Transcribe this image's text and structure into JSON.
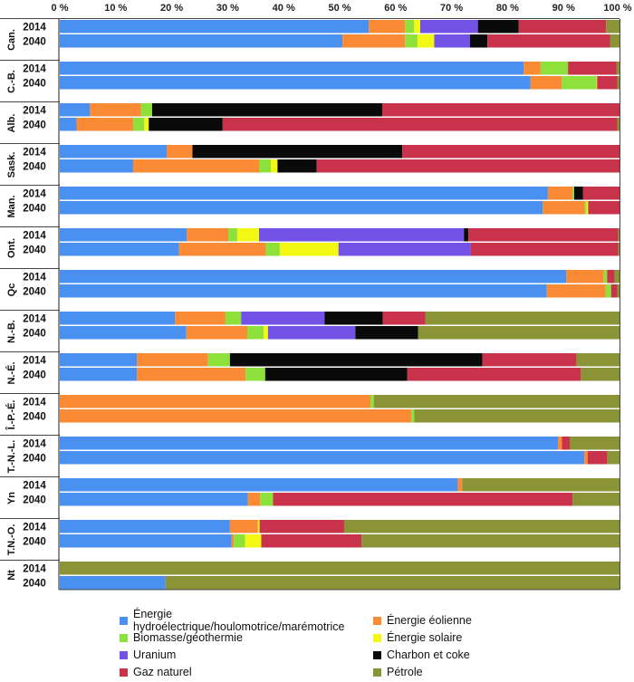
{
  "chart_data": {
    "type": "bar",
    "orientation": "horizontal",
    "stacked": true,
    "xlim": [
      0,
      100
    ],
    "x_ticks": [
      "0 %",
      "10 %",
      "20 %",
      "30 %",
      "40 %",
      "50 %",
      "60 %",
      "70 %",
      "80 %",
      "90 %",
      "100 %"
    ],
    "legend_position": "bottom",
    "series": [
      {
        "name": "Énergie hydroélectrique/houlomotrice/marémotrice",
        "color": "#4a90f0"
      },
      {
        "name": "Énergie éolienne",
        "color": "#fb8a35"
      },
      {
        "name": "Biomasse/géothermie",
        "color": "#8ee03a"
      },
      {
        "name": "Énergie solaire",
        "color": "#f3f714"
      },
      {
        "name": "Uranium",
        "color": "#7352e8"
      },
      {
        "name": "Charbon et coke",
        "color": "#0a0a0a"
      },
      {
        "name": "Gaz naturel",
        "color": "#c8324b"
      },
      {
        "name": "Pétrole",
        "color": "#8a9437"
      }
    ],
    "groups": [
      {
        "label": "Can.",
        "bars": [
          {
            "year": "2014",
            "values": [
              55.2,
              6.5,
              1.6,
              1.1,
              10.3,
              7.3,
              15.6,
              2.4
            ]
          },
          {
            "year": "2040",
            "values": [
              50.5,
              11.2,
              2.2,
              3.0,
              6.4,
              3.1,
              21.9,
              1.7
            ]
          }
        ]
      },
      {
        "label": "C.-B.",
        "bars": [
          {
            "year": "2014",
            "values": [
              82.9,
              3.0,
              4.9,
              0,
              0,
              0,
              8.7,
              0.5
            ]
          },
          {
            "year": "2040",
            "values": [
              84.1,
              5.6,
              6.2,
              0.1,
              0,
              0,
              3.6,
              0.4
            ]
          }
        ]
      },
      {
        "label": "Alb.",
        "bars": [
          {
            "year": "2014",
            "values": [
              5.4,
              9.1,
              2.0,
              0,
              0,
              41.1,
              42.4,
              0
            ]
          },
          {
            "year": "2040",
            "values": [
              3.0,
              10.1,
              2.0,
              0.8,
              0,
              13.2,
              70.5,
              0.4
            ]
          }
        ]
      },
      {
        "label": "Sask.",
        "bars": [
          {
            "year": "2014",
            "values": [
              19.1,
              4.6,
              0,
              0,
              0,
              37.5,
              38.8,
              0
            ]
          },
          {
            "year": "2040",
            "values": [
              13.1,
              22.5,
              2.1,
              1.2,
              0,
              7.0,
              54.1,
              0
            ]
          }
        ]
      },
      {
        "label": "Man.",
        "bars": [
          {
            "year": "2014",
            "values": [
              87.2,
              4.4,
              0.3,
              0,
              0,
              1.6,
              6.5,
              0
            ]
          },
          {
            "year": "2040",
            "values": [
              86.3,
              7.5,
              0.3,
              0.3,
              0,
              0,
              5.6,
              0
            ]
          }
        ]
      },
      {
        "label": "Ont.",
        "bars": [
          {
            "year": "2014",
            "values": [
              22.7,
              7.4,
              1.6,
              3.9,
              36.6,
              0.8,
              26.8,
              0.2
            ]
          },
          {
            "year": "2040",
            "values": [
              21.3,
              15.5,
              2.5,
              10.5,
              23.6,
              0,
              26.4,
              0.2
            ]
          }
        ]
      },
      {
        "label": "Qc",
        "bars": [
          {
            "year": "2014",
            "values": [
              90.5,
              6.7,
              0.6,
              0,
              0,
              0,
              1.3,
              0.9
            ]
          },
          {
            "year": "2040",
            "values": [
              87.0,
              10.5,
              1.0,
              0,
              0,
              0,
              1.1,
              0.4
            ]
          }
        ]
      },
      {
        "label": "N.-B.",
        "bars": [
          {
            "year": "2014",
            "values": [
              20.6,
              9.0,
              2.8,
              0,
              14.9,
              10.4,
              7.6,
              34.7
            ]
          },
          {
            "year": "2040",
            "values": [
              22.6,
              10.9,
              2.9,
              0.8,
              15.6,
              11.2,
              0,
              36.0
            ]
          }
        ]
      },
      {
        "label": "N.-É.",
        "bars": [
          {
            "year": "2014",
            "values": [
              13.8,
              12.7,
              3.9,
              0,
              0,
              45.1,
              16.8,
              7.7
            ]
          },
          {
            "year": "2040",
            "values": [
              13.8,
              19.4,
              3.5,
              0,
              0,
              25.4,
              31.0,
              6.9
            ]
          }
        ]
      },
      {
        "label": "Î.-P.-É.",
        "bars": [
          {
            "year": "2014",
            "values": [
              0,
              55.5,
              0.6,
              0,
              0,
              0,
              0,
              43.9
            ]
          },
          {
            "year": "2040",
            "values": [
              0,
              62.8,
              0.5,
              0,
              0,
              0,
              0,
              36.7
            ]
          }
        ]
      },
      {
        "label": "T.-N.-L.",
        "bars": [
          {
            "year": "2014",
            "values": [
              89.0,
              0.7,
              0,
              0,
              0,
              0,
              1.4,
              8.9
            ]
          },
          {
            "year": "2040",
            "values": [
              93.7,
              0.6,
              0,
              0,
              0,
              0,
              3.5,
              2.2
            ]
          }
        ]
      },
      {
        "label": "Yn",
        "bars": [
          {
            "year": "2014",
            "values": [
              71.1,
              0.8,
              0,
              0,
              0,
              0,
              0,
              28.1
            ]
          },
          {
            "year": "2040",
            "values": [
              33.6,
              2.2,
              2.3,
              0,
              0,
              0,
              53.5,
              8.4
            ]
          }
        ]
      },
      {
        "label": "T.N.-O.",
        "bars": [
          {
            "year": "2014",
            "values": [
              30.4,
              5.0,
              0,
              0.3,
              0,
              0,
              15.1,
              49.2
            ]
          },
          {
            "year": "2040",
            "values": [
              30.7,
              0.4,
              2.0,
              2.9,
              0,
              0,
              17.9,
              46.1
            ]
          }
        ]
      },
      {
        "label": "Nt",
        "bars": [
          {
            "year": "2014",
            "values": [
              0,
              0,
              0,
              0,
              0,
              0,
              0,
              100
            ]
          },
          {
            "year": "2040",
            "values": [
              18.9,
              0,
              0,
              0,
              0,
              0,
              0,
              81.1
            ]
          }
        ]
      }
    ]
  }
}
